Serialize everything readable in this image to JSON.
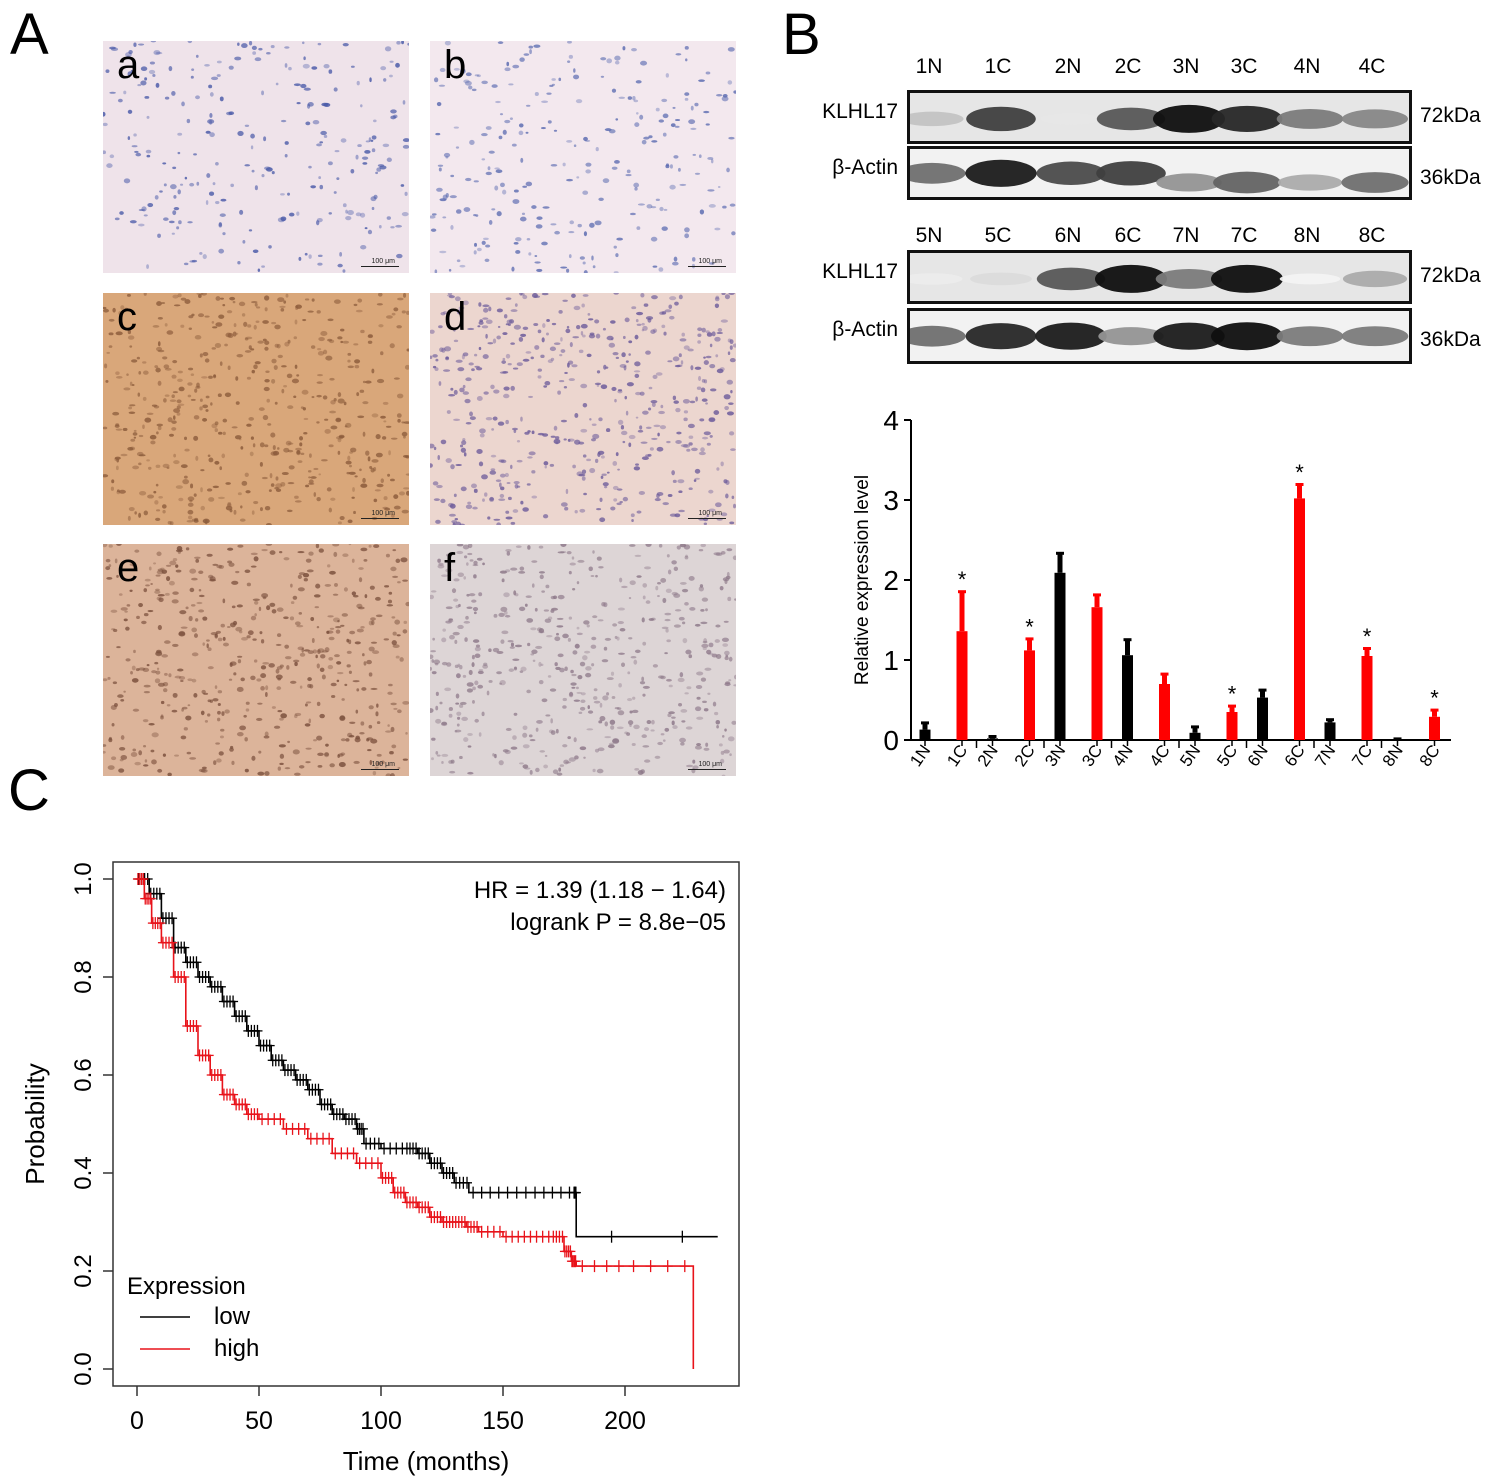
{
  "panels": {
    "A": {
      "letter": "A",
      "images": [
        {
          "label": "a",
          "scale": "100 μm",
          "stain": "negative",
          "bg": "#efe3ea",
          "cell": "#4a5aa8"
        },
        {
          "label": "b",
          "scale": "100 μm",
          "stain": "negative",
          "bg": "#f3e8ee",
          "cell": "#5a6ab0"
        },
        {
          "label": "c",
          "scale": "100 μm",
          "stain": "strong",
          "bg": "#d9a77a",
          "cell": "#8a5a3a"
        },
        {
          "label": "d",
          "scale": "100 μm",
          "stain": "moderate",
          "bg": "#ecd6cf",
          "cell": "#6b5a9a"
        },
        {
          "label": "e",
          "scale": "100 μm",
          "stain": "moderate",
          "bg": "#dcb49a",
          "cell": "#7a4f3c"
        },
        {
          "label": "f",
          "scale": "100 μm",
          "stain": "weak",
          "bg": "#ddd5d6",
          "cell": "#8c7788"
        }
      ]
    },
    "B": {
      "letter": "B",
      "blots": [
        {
          "lanes": [
            "1N",
            "1C",
            "2N",
            "2C",
            "3N",
            "3C",
            "4N",
            "4C"
          ],
          "rows": [
            {
              "label": "KLHL17",
              "kda": "72kDa",
              "intensity": [
                0.25,
                0.8,
                0.1,
                0.7,
                1.0,
                0.9,
                0.55,
                0.5
              ]
            },
            {
              "label": "β-Actin",
              "kda": "36kDa",
              "intensity": [
                0.6,
                0.95,
                0.75,
                0.8,
                0.45,
                0.65,
                0.35,
                0.6
              ]
            }
          ]
        },
        {
          "lanes": [
            "5N",
            "5C",
            "6N",
            "6C",
            "7N",
            "7C",
            "8N",
            "8C"
          ],
          "rows": [
            {
              "label": "KLHL17",
              "kda": "72kDa",
              "intensity": [
                0.08,
                0.15,
                0.7,
                1.0,
                0.55,
                1.0,
                0.05,
                0.35
              ]
            },
            {
              "label": "β-Actin",
              "kda": "36kDa",
              "intensity": [
                0.6,
                0.9,
                0.95,
                0.45,
                0.95,
                1.0,
                0.55,
                0.55
              ]
            }
          ]
        }
      ]
    },
    "C": {
      "letter": "C"
    }
  },
  "chart_data": [
    {
      "id": "B-bar",
      "type": "bar",
      "title": "",
      "xlabel": "",
      "ylabel": "Relative expression level",
      "ylim": [
        0,
        4
      ],
      "yticks": [
        0,
        1,
        2,
        3,
        4
      ],
      "grid": false,
      "categories": [
        "1N",
        "1C",
        "2N",
        "2C",
        "3N",
        "3C",
        "4N",
        "4C",
        "5N",
        "5C",
        "6N",
        "6C",
        "7N",
        "7C",
        "8N",
        "8C"
      ],
      "values": [
        0.13,
        1.36,
        0.02,
        1.12,
        2.09,
        1.66,
        1.06,
        0.7,
        0.09,
        0.35,
        0.53,
        3.02,
        0.22,
        1.05,
        0.0,
        0.29
      ],
      "errors": [
        0.09,
        0.5,
        0.03,
        0.15,
        0.25,
        0.16,
        0.2,
        0.13,
        0.08,
        0.08,
        0.1,
        0.18,
        0.04,
        0.1,
        0.02,
        0.09
      ],
      "colors": {
        "N": "#000000",
        "C": "#ff0000"
      },
      "significance": [
        "",
        "*",
        "",
        "*",
        "",
        "",
        "",
        "",
        "",
        "*",
        "",
        "*",
        "",
        "*",
        "",
        "*"
      ]
    },
    {
      "id": "C-km",
      "type": "line",
      "title": "",
      "xlabel": "Time (months)",
      "ylabel": "Probability",
      "xlim": [
        0,
        240
      ],
      "ylim": [
        0,
        1.0
      ],
      "xticks": [
        0,
        50,
        100,
        150,
        200
      ],
      "yticks": [
        "0.0",
        "0.2",
        "0.4",
        "0.6",
        "0.8",
        "1.0"
      ],
      "grid": false,
      "annotations": [
        "HR = 1.39 (1.18 − 1.64)",
        "logrank P = 8.8e−05"
      ],
      "legend": {
        "title": "Expression",
        "position": "bottom-left"
      },
      "series": [
        {
          "name": "low",
          "color": "#000000",
          "x": [
            0,
            5,
            10,
            15,
            20,
            25,
            30,
            35,
            40,
            45,
            50,
            55,
            60,
            65,
            70,
            75,
            80,
            85,
            90,
            93,
            100,
            110,
            115,
            120,
            125,
            130,
            136,
            150,
            165,
            179,
            180,
            238
          ],
          "y": [
            1.0,
            0.97,
            0.92,
            0.86,
            0.83,
            0.8,
            0.78,
            0.75,
            0.72,
            0.69,
            0.66,
            0.63,
            0.61,
            0.59,
            0.57,
            0.54,
            0.52,
            0.51,
            0.49,
            0.46,
            0.45,
            0.45,
            0.44,
            0.42,
            0.4,
            0.38,
            0.36,
            0.36,
            0.36,
            0.36,
            0.27,
            0.27
          ]
        },
        {
          "name": "high",
          "color": "#e8131a",
          "x": [
            0,
            3,
            6,
            10,
            15,
            20,
            25,
            30,
            35,
            40,
            45,
            50,
            60,
            70,
            80,
            90,
            100,
            105,
            110,
            115,
            120,
            125,
            130,
            135,
            140,
            150,
            160,
            170,
            175,
            178,
            180,
            200,
            228,
            228
          ],
          "y": [
            1.0,
            0.96,
            0.91,
            0.87,
            0.8,
            0.7,
            0.64,
            0.6,
            0.56,
            0.54,
            0.52,
            0.51,
            0.49,
            0.47,
            0.44,
            0.42,
            0.39,
            0.36,
            0.34,
            0.33,
            0.31,
            0.3,
            0.3,
            0.29,
            0.28,
            0.27,
            0.27,
            0.27,
            0.24,
            0.22,
            0.21,
            0.21,
            0.21,
            0.0
          ]
        }
      ]
    }
  ]
}
